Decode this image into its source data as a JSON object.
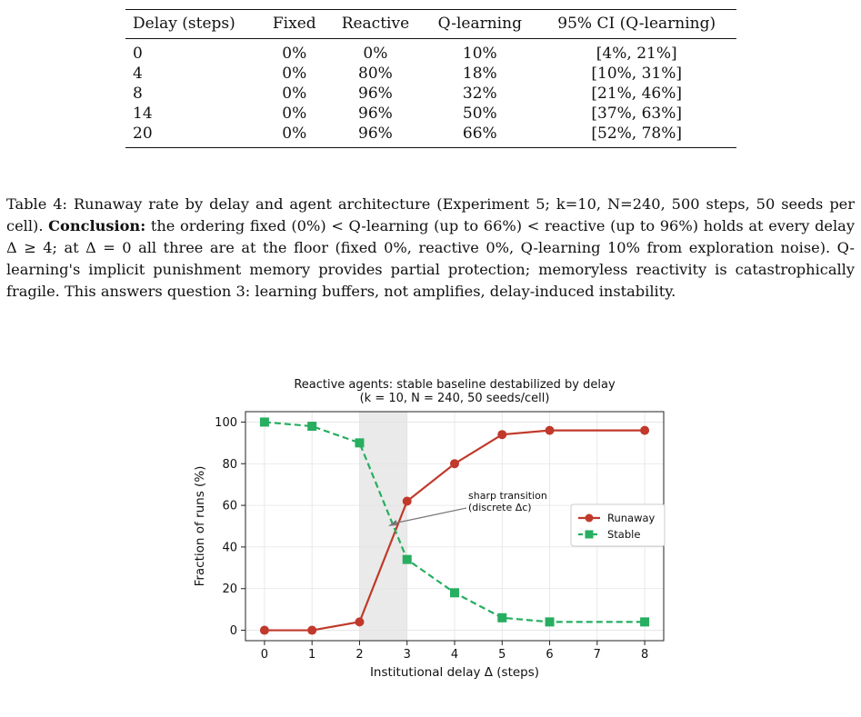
{
  "table": {
    "headers": [
      "Delay (steps)",
      "Fixed",
      "Reactive",
      "Q-learning",
      "95% CI (Q-learning)"
    ],
    "rows": [
      [
        "0",
        "0%",
        "0%",
        "10%",
        "[4%, 21%]"
      ],
      [
        "4",
        "0%",
        "80%",
        "18%",
        "[10%, 31%]"
      ],
      [
        "8",
        "0%",
        "96%",
        "32%",
        "[21%, 46%]"
      ],
      [
        "14",
        "0%",
        "96%",
        "50%",
        "[37%, 63%]"
      ],
      [
        "20",
        "0%",
        "96%",
        "66%",
        "[52%, 78%]"
      ]
    ]
  },
  "caption": {
    "lead": "Table 4: Runaway rate by delay and agent architecture (Experiment 5; k=10, N=240, 500 steps, 50 seeds per cell).",
    "bold": "Conclusion:",
    "body": "the ordering fixed (0%) < Q-learning (up to 66%) < reactive (up to 96%) holds at every delay Δ ≥ 4; at Δ = 0 all three are at the floor (fixed 0%, reactive 0%, Q-learning 10% from exploration noise). Q-learning's implicit punishment memory provides partial protection; memoryless reactivity is catastrophically fragile. This answers question 3: learning buffers, not amplifies, delay-induced instability."
  },
  "chart_data": {
    "type": "line",
    "title": "Reactive agents: stable baseline destabilized by delay",
    "subtitle": "(k = 10, N = 240, 50 seeds/cell)",
    "xlabel": "Institutional delay Δ (steps)",
    "ylabel": "Fraction of runs (%)",
    "x": [
      0,
      1,
      2,
      3,
      4,
      5,
      6,
      8
    ],
    "xticks": [
      0,
      1,
      2,
      3,
      4,
      5,
      6,
      7,
      8
    ],
    "yticks": [
      0,
      20,
      40,
      60,
      80,
      100
    ],
    "xlim": [
      -0.4,
      8.4
    ],
    "ylim": [
      -5,
      105
    ],
    "grid": true,
    "legend": "center-right",
    "shaded_region": [
      2,
      3
    ],
    "series": [
      {
        "name": "Runaway",
        "values": [
          0,
          0,
          4,
          62,
          80,
          94,
          96,
          96
        ],
        "color": "#c0392b",
        "marker": "circle",
        "dash": "solid"
      },
      {
        "name": "Stable",
        "values": [
          100,
          98,
          90,
          34,
          18,
          6,
          4,
          4
        ],
        "color": "#27ae60",
        "marker": "square",
        "dash": "dashed"
      }
    ],
    "annotation": {
      "text1": "sharp transition",
      "text2": "(discrete Δc)",
      "x": 2.6,
      "y": 50
    }
  }
}
